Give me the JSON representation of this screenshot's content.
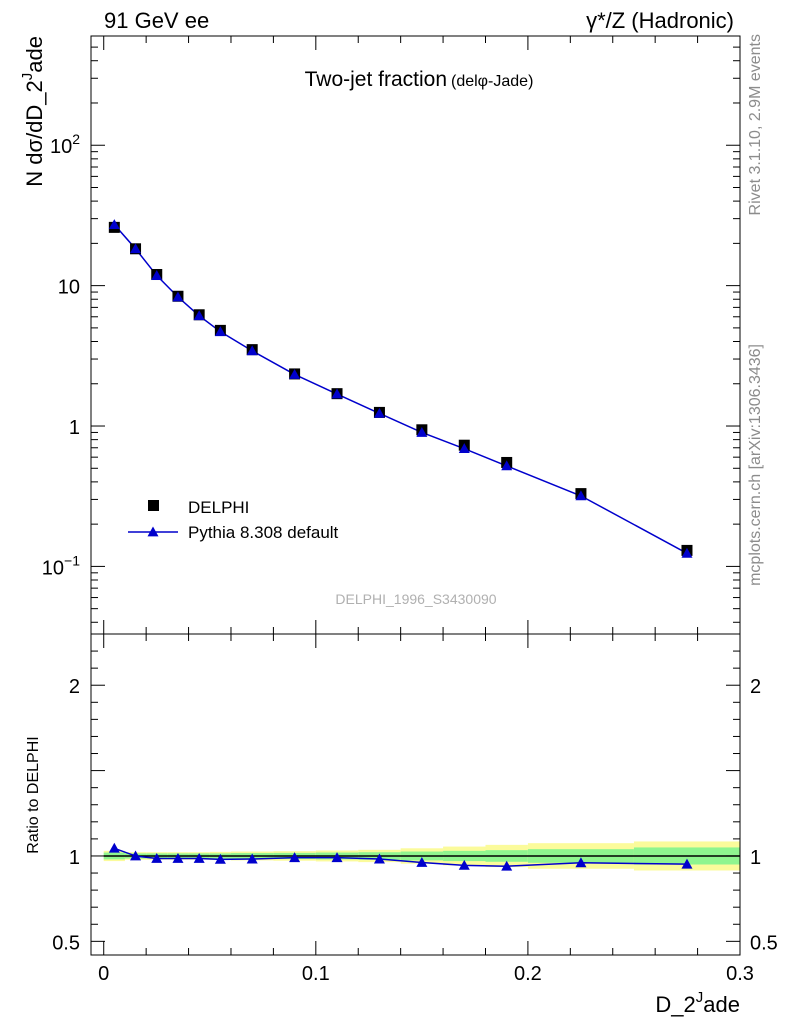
{
  "header": {
    "left": "91 GeV ee",
    "right": "γ*/Z (Hadronic)"
  },
  "side": {
    "rivet": "Rivet 3.1.10,  2.9M events",
    "mcplots": "mcplots.cern.ch [arXiv:1306.3436]"
  },
  "chart_data": [
    {
      "type": "scatter",
      "title": "Two-jet fraction",
      "subtitle": "(delφ-Jade)",
      "watermark": "DELPHI_1996_S3430090",
      "ylabel_main": "N dσ/dD_2",
      "ylabel_sup": "J",
      "ylabel_tail": "ade",
      "yscale": "log",
      "xlim": [
        -0.006,
        0.3
      ],
      "ylim": [
        0.033,
        600
      ],
      "ytick_labels": [
        {
          "value": 100,
          "base": "10",
          "exp": "2"
        },
        {
          "value": 10,
          "base": "10",
          "exp": ""
        },
        {
          "value": 1,
          "base": "1",
          "exp": ""
        },
        {
          "value": 0.1,
          "base": "10",
          "exp": "−1"
        }
      ],
      "legend": {
        "placement": "middle-left",
        "entries": [
          "DELPHI",
          "Pythia 8.308 default"
        ]
      },
      "series": [
        {
          "name": "DELPHI",
          "marker": "square",
          "color": "#000000",
          "x": [
            0.005,
            0.015,
            0.025,
            0.035,
            0.045,
            0.055,
            0.07,
            0.09,
            0.11,
            0.13,
            0.15,
            0.17,
            0.19,
            0.225,
            0.275
          ],
          "y": [
            26.0,
            18.3,
            12.0,
            8.4,
            6.2,
            4.8,
            3.5,
            2.35,
            1.7,
            1.25,
            0.94,
            0.73,
            0.55,
            0.33,
            0.13
          ]
        },
        {
          "name": "Pythia 8.308 default",
          "marker": "triangle",
          "color": "#0000cc",
          "x": [
            0.005,
            0.015,
            0.025,
            0.035,
            0.045,
            0.055,
            0.07,
            0.09,
            0.11,
            0.13,
            0.15,
            0.17,
            0.19,
            0.225,
            0.275
          ],
          "y": [
            27.2,
            18.3,
            11.8,
            8.3,
            6.1,
            4.7,
            3.43,
            2.33,
            1.69,
            1.23,
            0.9,
            0.69,
            0.52,
            0.318,
            0.124
          ]
        }
      ]
    },
    {
      "type": "line",
      "ylabel": "Ratio to DELPHI",
      "xlabel_main": "D_2",
      "xlabel_sup": "J",
      "xlabel_tail": "ade",
      "xlim": [
        -0.006,
        0.3
      ],
      "ylim": [
        0.42,
        2.3
      ],
      "xticks": [
        0,
        0.1,
        0.2,
        0.3
      ],
      "xtick_labels": [
        "0",
        "0.1",
        "0.2",
        "0.3"
      ],
      "yticks": [
        0.5,
        1,
        2
      ],
      "ytick_labels": [
        "0.5",
        "1",
        "2"
      ],
      "bands": {
        "edges": [
          0,
          0.01,
          0.02,
          0.03,
          0.04,
          0.05,
          0.06,
          0.08,
          0.1,
          0.12,
          0.14,
          0.16,
          0.18,
          0.2,
          0.25,
          0.3
        ],
        "green_half": [
          0.02,
          0.015,
          0.015,
          0.015,
          0.015,
          0.015,
          0.017,
          0.018,
          0.02,
          0.022,
          0.026,
          0.03,
          0.034,
          0.04,
          0.05
        ],
        "yellow_half": [
          0.03,
          0.022,
          0.022,
          0.022,
          0.022,
          0.024,
          0.026,
          0.028,
          0.032,
          0.036,
          0.045,
          0.055,
          0.065,
          0.075,
          0.085
        ]
      },
      "series": [
        {
          "name": "Pythia 8.308 default",
          "color": "#0000cc",
          "x": [
            0.005,
            0.015,
            0.025,
            0.035,
            0.045,
            0.055,
            0.07,
            0.09,
            0.11,
            0.13,
            0.15,
            0.17,
            0.19,
            0.225,
            0.275
          ],
          "y": [
            1.045,
            1.0,
            0.985,
            0.985,
            0.985,
            0.98,
            0.982,
            0.99,
            0.99,
            0.982,
            0.962,
            0.945,
            0.94,
            0.96,
            0.952
          ]
        }
      ]
    }
  ]
}
